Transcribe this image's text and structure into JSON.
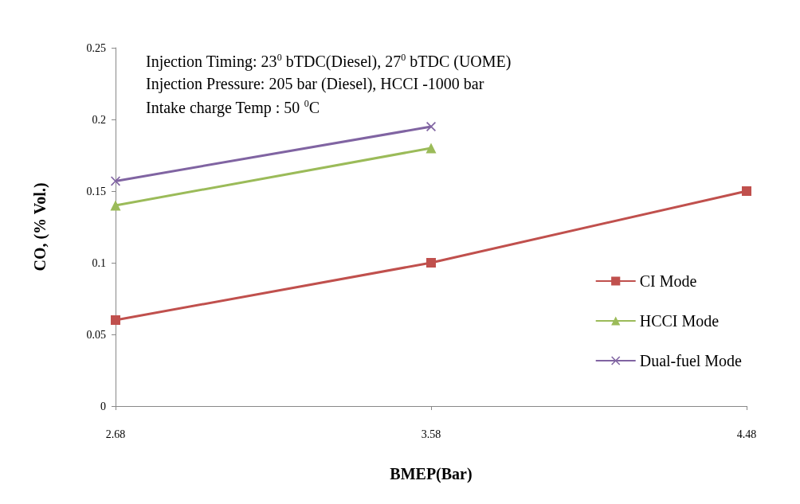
{
  "chart_data": {
    "type": "line",
    "xlabel": "BMEP(Bar)",
    "ylabel": "CO, (% Vol.)",
    "x": [
      2.68,
      3.58,
      4.48
    ],
    "xlim": [
      2.68,
      4.48
    ],
    "xticks": [
      2.68,
      3.58,
      4.48
    ],
    "ylim": [
      0,
      0.25
    ],
    "yticks": [
      0,
      0.05,
      0.1,
      0.15,
      0.2,
      0.25
    ],
    "legend": "right",
    "annotations": [
      "Injection Timing: 23$^{0}$ bTDC(Diesel), 27$^{0}$ bTDC (UOME)",
      "Injection Pressure: 205 bar (Diesel), HCCI -1000 bar",
      "Intake charge Temp : 50 $^{0}$C"
    ],
    "series": [
      {
        "name": "CI Mode",
        "color": "#c0504d",
        "marker": "square",
        "values": [
          0.06,
          0.1,
          0.15
        ]
      },
      {
        "name": "HCCI Mode",
        "color": "#9bbb59",
        "marker": "triangle",
        "values": [
          0.14,
          0.18,
          null
        ]
      },
      {
        "name": "Dual-fuel Mode",
        "color": "#8064a2",
        "marker": "cross",
        "values": [
          0.157,
          0.195,
          null
        ]
      }
    ]
  }
}
